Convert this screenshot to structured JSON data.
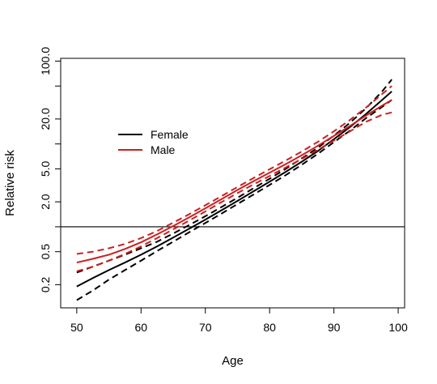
{
  "chart_data": {
    "type": "line",
    "title": "",
    "xlabel": "Age",
    "ylabel": "Relative risk",
    "xlim": [
      47.5,
      101
    ],
    "ylim": [
      0.105,
      108
    ],
    "yscale": "log",
    "xticks": [
      50,
      60,
      70,
      80,
      90,
      100
    ],
    "yticks": [
      0.2,
      0.5,
      2.0,
      5.0,
      20.0,
      100.0
    ],
    "yticklabels": [
      "0.2",
      "0.5",
      "2.0",
      "5.0",
      "20.0",
      "100.0"
    ],
    "reference_line": 1,
    "grid": false,
    "legend": {
      "position": "upper-left",
      "entries": [
        {
          "label": "Female",
          "color": "#000000"
        },
        {
          "label": "Male",
          "color": "#cc1f1f"
        }
      ]
    },
    "x": [
      50,
      52.5,
      55,
      57.5,
      60,
      62.5,
      65,
      67.5,
      70,
      72.5,
      75,
      77.5,
      80,
      82.5,
      85,
      87.5,
      90,
      92.5,
      95,
      97.5,
      99
    ],
    "series": [
      {
        "name": "Female",
        "group": "Female",
        "role": "estimate",
        "color": "#000000",
        "dash": "solid",
        "values": [
          0.19,
          0.24,
          0.3,
          0.37,
          0.46,
          0.58,
          0.74,
          0.95,
          1.22,
          1.58,
          2.05,
          2.68,
          3.5,
          4.6,
          6.1,
          8.2,
          11.4,
          16.0,
          23.0,
          34.0,
          43.0
        ]
      },
      {
        "group": "Female",
        "role": "lower",
        "color": "#000000",
        "dash": "dashed",
        "values": [
          0.13,
          0.17,
          0.23,
          0.3,
          0.39,
          0.51,
          0.66,
          0.86,
          1.11,
          1.44,
          1.88,
          2.45,
          3.2,
          4.2,
          5.6,
          7.6,
          10.5,
          14.5,
          20.5,
          28.0,
          34.0
        ]
      },
      {
        "group": "Female",
        "role": "upper",
        "color": "#000000",
        "dash": "dashed",
        "values": [
          0.28,
          0.33,
          0.39,
          0.46,
          0.55,
          0.66,
          0.83,
          1.05,
          1.34,
          1.73,
          2.24,
          2.92,
          3.8,
          5.0,
          6.7,
          9.0,
          12.6,
          18.0,
          27.0,
          43.0,
          60.0
        ]
      },
      {
        "name": "Male",
        "group": "Male",
        "role": "estimate",
        "color": "#cc1f1f",
        "dash": "solid",
        "values": [
          0.37,
          0.41,
          0.46,
          0.54,
          0.65,
          0.81,
          1.02,
          1.3,
          1.67,
          2.15,
          2.78,
          3.55,
          4.5,
          5.7,
          7.3,
          9.5,
          12.5,
          16.5,
          22.0,
          29.0,
          34.0
        ]
      },
      {
        "group": "Male",
        "role": "lower",
        "color": "#cc1f1f",
        "dash": "dashed",
        "values": [
          0.29,
          0.33,
          0.39,
          0.47,
          0.58,
          0.73,
          0.93,
          1.19,
          1.53,
          1.98,
          2.55,
          3.25,
          4.1,
          5.2,
          6.6,
          8.5,
          11.0,
          14.2,
          18.5,
          22.5,
          24.0
        ]
      },
      {
        "group": "Male",
        "role": "upper",
        "color": "#cc1f1f",
        "dash": "dashed",
        "values": [
          0.47,
          0.5,
          0.55,
          0.62,
          0.73,
          0.89,
          1.12,
          1.42,
          1.82,
          2.34,
          3.02,
          3.88,
          4.95,
          6.3,
          8.1,
          10.6,
          14.2,
          19.5,
          27.5,
          40.0,
          50.0
        ]
      }
    ]
  }
}
